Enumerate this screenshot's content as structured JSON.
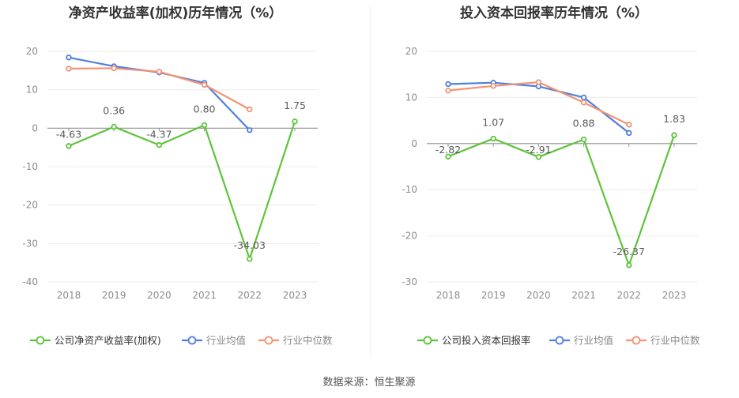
{
  "source": "数据来源：恒生聚源",
  "colors": {
    "company": "#5cc43a",
    "average": "#4f7fe0",
    "median": "#f39274",
    "axis_text": "#8c8c8c",
    "label_text": "#595959",
    "grid": "#ececec",
    "zero_line": "#8f8f8f",
    "title": "#333333",
    "divider": "#eeeeee"
  },
  "chart_data": [
    {
      "type": "line",
      "title": "净资产收益率(加权)历年情况（%）",
      "categories": [
        "2018",
        "2019",
        "2020",
        "2021",
        "2022",
        "2023"
      ],
      "ylim": [
        -40,
        20
      ],
      "yticks": [
        20,
        10,
        0,
        -10,
        -20,
        -30,
        -40
      ],
      "grid": true,
      "legend_position": "bottom",
      "series": [
        {
          "name": "公司净资产收益率(加权)",
          "key": "company",
          "values": [
            -4.63,
            0.36,
            -4.37,
            0.8,
            -34.03,
            1.75
          ],
          "labels": [
            "-4.63",
            "0.36",
            "-4.37",
            "0.80",
            "-34.03",
            "1.75"
          ]
        },
        {
          "name": "行业均值",
          "key": "average",
          "values": [
            18.4,
            16.1,
            14.5,
            11.8,
            -0.5,
            null
          ]
        },
        {
          "name": "行业中位数",
          "key": "median",
          "values": [
            15.5,
            15.6,
            14.7,
            11.3,
            4.9,
            null
          ]
        }
      ]
    },
    {
      "type": "line",
      "title": "投入资本回报率历年情况（%）",
      "categories": [
        "2018",
        "2019",
        "2020",
        "2021",
        "2022",
        "2023"
      ],
      "ylim": [
        -30,
        20
      ],
      "yticks": [
        20,
        10,
        0,
        -10,
        -20,
        -30
      ],
      "grid": true,
      "legend_position": "bottom",
      "series": [
        {
          "name": "公司投入资本回报率",
          "key": "company",
          "values": [
            -2.82,
            1.07,
            -2.91,
            0.88,
            -26.37,
            1.83
          ],
          "labels": [
            "-2.82",
            "1.07",
            "-2.91",
            "0.88",
            "-26.37",
            "1.83"
          ]
        },
        {
          "name": "行业均值",
          "key": "average",
          "values": [
            12.9,
            13.2,
            12.4,
            10.0,
            2.3,
            null
          ]
        },
        {
          "name": "行业中位数",
          "key": "median",
          "values": [
            11.5,
            12.5,
            13.3,
            8.9,
            4.1,
            null
          ]
        }
      ]
    }
  ]
}
